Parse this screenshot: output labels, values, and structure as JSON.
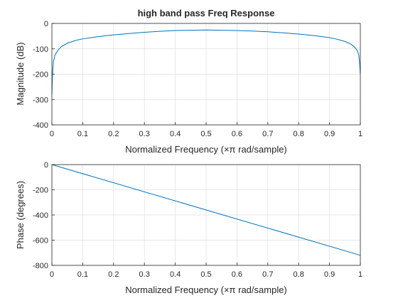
{
  "figure": {
    "background": "#ffffff",
    "axes_color": "#262626",
    "grid_color": "#dfdfdf",
    "line_color": "#0072bd"
  },
  "chart_data": [
    {
      "type": "line",
      "title": "high band pass Freq Response",
      "xlabel": "Normalized Frequency  (×π rad/sample)",
      "ylabel": "Magnitude (dB)",
      "xlim": [
        0,
        1
      ],
      "ylim": [
        -400,
        0
      ],
      "xticks": [
        "0",
        "0.1",
        "0.2",
        "0.3",
        "0.4",
        "0.5",
        "0.6",
        "0.7",
        "0.8",
        "0.9",
        "1"
      ],
      "yticks": [
        "0",
        "-100",
        "-200",
        "-300",
        "-400"
      ],
      "grid": true,
      "series": [
        {
          "x": [
            0,
            0.002,
            0.005,
            0.01,
            0.02,
            0.03,
            0.05,
            0.08,
            0.1,
            0.15,
            0.2,
            0.25,
            0.3,
            0.35,
            0.4,
            0.45,
            0.5,
            0.55,
            0.6,
            0.65,
            0.7,
            0.75,
            0.8,
            0.85,
            0.9,
            0.92,
            0.95,
            0.97,
            0.98,
            0.99,
            0.995,
            0.998,
            1
          ],
          "y": [
            -280,
            -200,
            -150,
            -125,
            -105,
            -92,
            -78,
            -66,
            -61,
            -52,
            -45,
            -40,
            -35,
            -31,
            -28,
            -27,
            -26,
            -27,
            -28,
            -30,
            -33,
            -37,
            -42,
            -48,
            -56,
            -61,
            -71,
            -82,
            -92,
            -106,
            -125,
            -160,
            -200
          ]
        }
      ]
    },
    {
      "type": "line",
      "title": "",
      "xlabel": "Normalized Frequency  (×π rad/sample)",
      "ylabel": "Phase (degrees)",
      "xlim": [
        0,
        1
      ],
      "ylim": [
        -800,
        0
      ],
      "xticks": [
        "0",
        "0.1",
        "0.2",
        "0.3",
        "0.4",
        "0.5",
        "0.6",
        "0.7",
        "0.8",
        "0.9",
        "1"
      ],
      "yticks": [
        "0",
        "-200",
        "-400",
        "-600",
        "-800"
      ],
      "grid": true,
      "series": [
        {
          "x": [
            0,
            1
          ],
          "y": [
            0,
            -720
          ]
        }
      ]
    }
  ]
}
